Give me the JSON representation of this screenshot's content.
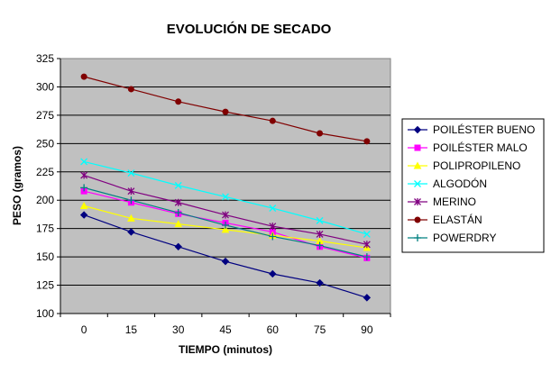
{
  "chart_data": {
    "type": "line",
    "title": "EVOLUCIÓN DE SECADO",
    "xlabel": "TIEMPO (minutos)",
    "ylabel": "PESO (gramos)",
    "x": [
      0,
      15,
      30,
      45,
      60,
      75,
      90
    ],
    "ylim": [
      100,
      325
    ],
    "yticks": [
      100,
      125,
      150,
      175,
      200,
      225,
      250,
      275,
      300,
      325
    ],
    "grid": "horizontal",
    "plot_background": "#c0c0c0",
    "legend_position": "right",
    "series": [
      {
        "name": "POILÉSTER BUENO",
        "color": "#000080",
        "marker": "diamond",
        "values": [
          187,
          172,
          159,
          146,
          135,
          127,
          114
        ]
      },
      {
        "name": "POILÉSTER MALO",
        "color": "#ff00ff",
        "marker": "square",
        "values": [
          208,
          198,
          188,
          180,
          172,
          159,
          149
        ]
      },
      {
        "name": "POLIPROPILENO",
        "color": "#ffff00",
        "marker": "triangle",
        "values": [
          195,
          184,
          179,
          174,
          169,
          164,
          158
        ]
      },
      {
        "name": "ALGODÓN",
        "color": "#00ffff",
        "marker": "x",
        "values": [
          234,
          224,
          213,
          203,
          193,
          182,
          170
        ]
      },
      {
        "name": "MERINO",
        "color": "#800080",
        "marker": "star",
        "values": [
          222,
          208,
          198,
          187,
          177,
          170,
          161
        ]
      },
      {
        "name": "ELASTÁN",
        "color": "#800000",
        "marker": "circle",
        "values": [
          309,
          298,
          287,
          278,
          270,
          259,
          252
        ]
      },
      {
        "name": "POWERDRY",
        "color": "#008080",
        "marker": "plus",
        "values": [
          211,
          200,
          189,
          178,
          168,
          160,
          150
        ]
      }
    ]
  }
}
